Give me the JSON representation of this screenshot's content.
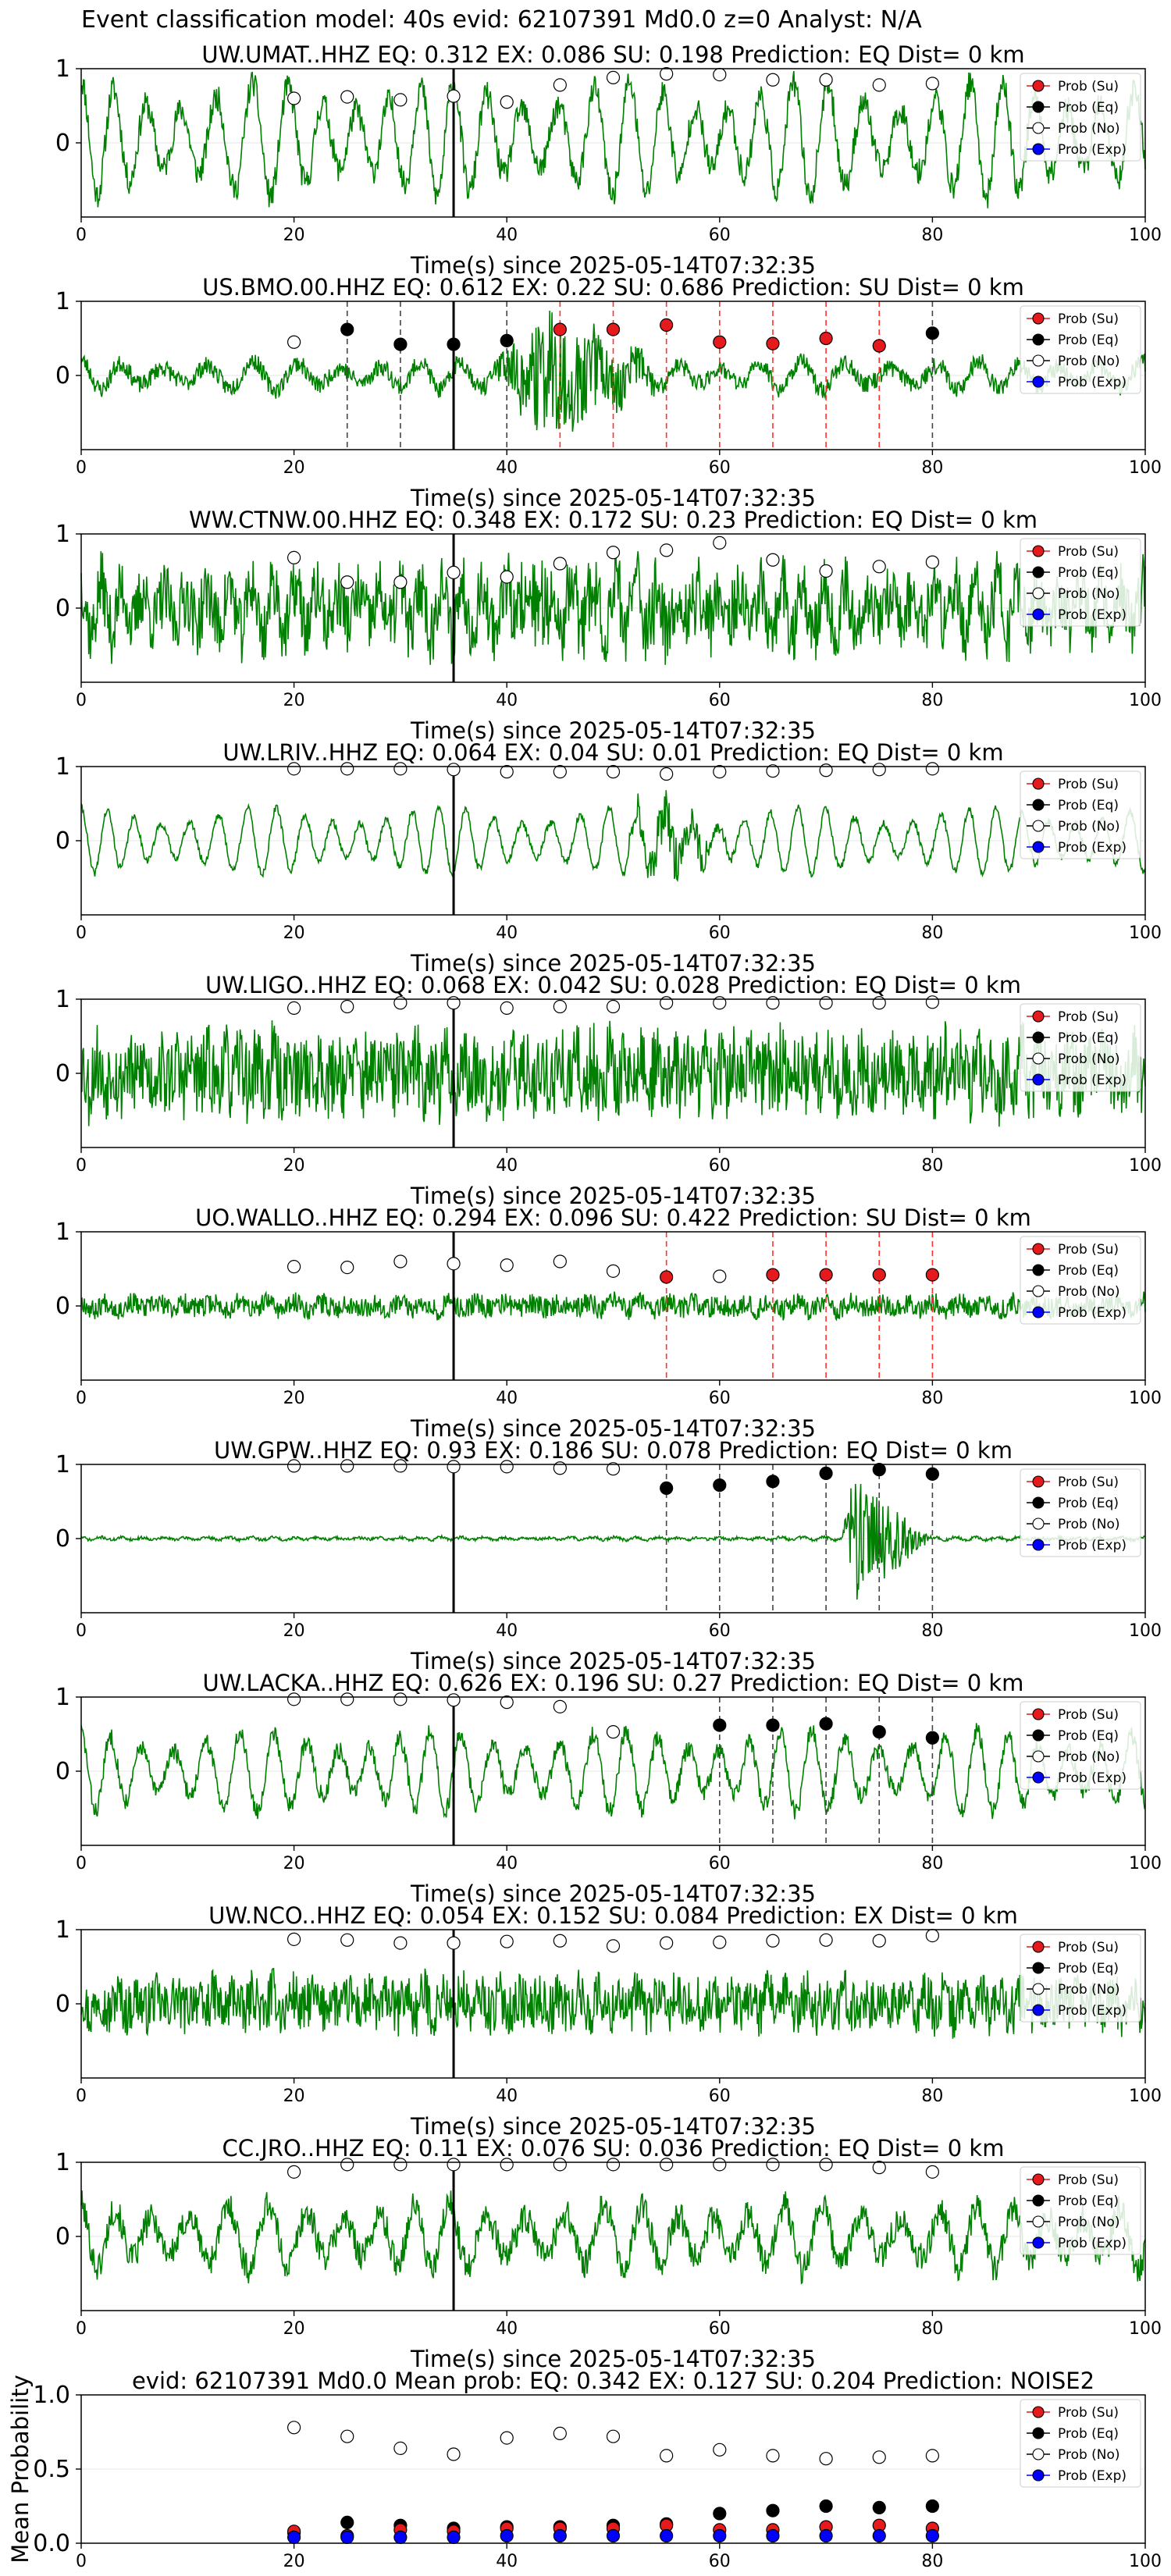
{
  "figure": {
    "suptitle": "Event classification model: 40s evid: 62107391 Md0.0 z=0 Analyst: N/A",
    "xlabel": "Time(s) since 2025-05-14T07:32:35",
    "legend_labels": [
      "Prob (Su)",
      "Prob (Eq)",
      "Prob (No)",
      "Prob (Exp)"
    ]
  },
  "colors": {
    "waveform": "#008000",
    "su": "#e41a1c",
    "eq": "#000000",
    "no": "#ffffff",
    "exp": "#0000ff",
    "su_line": "#ff3030",
    "eq_line": "#444444",
    "event_line": "#000000"
  },
  "chart_data": [
    {
      "type": "line",
      "title": "UW.UMAT..HHZ   EQ: 0.312  EX: 0.086  SU: 0.198   Prediction: EQ    Dist= 0 km",
      "xlim": [
        0,
        100
      ],
      "ylim": [
        -1,
        1
      ],
      "xticks": [
        0,
        20,
        40,
        60,
        80,
        100
      ],
      "yticks": [
        0,
        1
      ],
      "event_time": 35,
      "waveform": {
        "amp": 0.78,
        "noise": 0.18,
        "period": 3.2,
        "bias": 0.05,
        "seed": 11,
        "burst": null
      },
      "points": [
        {
          "x": 20,
          "y": 0.6,
          "class": "no"
        },
        {
          "x": 25,
          "y": 0.62,
          "class": "no"
        },
        {
          "x": 30,
          "y": 0.58,
          "class": "no"
        },
        {
          "x": 35,
          "y": 0.63,
          "class": "no"
        },
        {
          "x": 40,
          "y": 0.55,
          "class": "no"
        },
        {
          "x": 45,
          "y": 0.78,
          "class": "no"
        },
        {
          "x": 50,
          "y": 0.88,
          "class": "no"
        },
        {
          "x": 55,
          "y": 0.93,
          "class": "no"
        },
        {
          "x": 60,
          "y": 0.92,
          "class": "no"
        },
        {
          "x": 65,
          "y": 0.85,
          "class": "no"
        },
        {
          "x": 70,
          "y": 0.85,
          "class": "no"
        },
        {
          "x": 75,
          "y": 0.78,
          "class": "no"
        },
        {
          "x": 80,
          "y": 0.8,
          "class": "no"
        }
      ]
    },
    {
      "type": "line",
      "title": "US.BMO.00.HHZ   EQ: 0.612  EX: 0.22  SU: 0.686   Prediction: SU    Dist= 0 km",
      "xlim": [
        0,
        100
      ],
      "ylim": [
        -1,
        1
      ],
      "xticks": [
        0,
        20,
        40,
        60,
        80,
        100
      ],
      "yticks": [
        0,
        1
      ],
      "event_time": 35,
      "waveform": {
        "amp": 0.2,
        "noise": 0.12,
        "period": 4.0,
        "bias": 0.0,
        "seed": 23,
        "burst": {
          "start": 38,
          "peak": 44,
          "end": 55,
          "amp": 0.85
        }
      },
      "points": [
        {
          "x": 20,
          "y": 0.45,
          "class": "no"
        },
        {
          "x": 25,
          "y": 0.62,
          "class": "eq"
        },
        {
          "x": 30,
          "y": 0.42,
          "class": "eq"
        },
        {
          "x": 35,
          "y": 0.42,
          "class": "eq"
        },
        {
          "x": 40,
          "y": 0.47,
          "class": "eq"
        },
        {
          "x": 45,
          "y": 0.62,
          "class": "su"
        },
        {
          "x": 50,
          "y": 0.62,
          "class": "su"
        },
        {
          "x": 55,
          "y": 0.68,
          "class": "su"
        },
        {
          "x": 60,
          "y": 0.45,
          "class": "su"
        },
        {
          "x": 65,
          "y": 0.43,
          "class": "su"
        },
        {
          "x": 70,
          "y": 0.5,
          "class": "su"
        },
        {
          "x": 75,
          "y": 0.4,
          "class": "su"
        },
        {
          "x": 80,
          "y": 0.57,
          "class": "eq"
        }
      ]
    },
    {
      "type": "line",
      "title": "WW.CTNW.00.HHZ   EQ: 0.348  EX: 0.172  SU: 0.23   Prediction: EQ    Dist= 0 km",
      "xlim": [
        0,
        100
      ],
      "ylim": [
        -1,
        1
      ],
      "xticks": [
        0,
        20,
        40,
        60,
        80,
        100
      ],
      "yticks": [
        0,
        1
      ],
      "event_time": 35,
      "waveform": {
        "amp": 0.35,
        "noise": 0.45,
        "period": 2.0,
        "bias": 0.0,
        "seed": 37,
        "burst": {
          "start": 36,
          "peak": 42,
          "end": 70,
          "amp": 0.35
        }
      },
      "points": [
        {
          "x": 20,
          "y": 0.68,
          "class": "no"
        },
        {
          "x": 25,
          "y": 0.35,
          "class": "no"
        },
        {
          "x": 30,
          "y": 0.35,
          "class": "no"
        },
        {
          "x": 35,
          "y": 0.48,
          "class": "no"
        },
        {
          "x": 40,
          "y": 0.42,
          "class": "no"
        },
        {
          "x": 45,
          "y": 0.6,
          "class": "no"
        },
        {
          "x": 50,
          "y": 0.75,
          "class": "no"
        },
        {
          "x": 55,
          "y": 0.78,
          "class": "no"
        },
        {
          "x": 60,
          "y": 0.88,
          "class": "no"
        },
        {
          "x": 65,
          "y": 0.65,
          "class": "no"
        },
        {
          "x": 70,
          "y": 0.5,
          "class": "no"
        },
        {
          "x": 75,
          "y": 0.56,
          "class": "no"
        },
        {
          "x": 80,
          "y": 0.62,
          "class": "no"
        }
      ]
    },
    {
      "type": "line",
      "title": "UW.LRIV..HHZ   EQ: 0.064  EX: 0.04  SU: 0.01   Prediction: EQ    Dist= 0 km",
      "xlim": [
        0,
        100
      ],
      "ylim": [
        -1,
        1
      ],
      "xticks": [
        0,
        20,
        40,
        60,
        80,
        100
      ],
      "yticks": [
        0,
        1
      ],
      "event_time": 35,
      "waveform": {
        "amp": 0.45,
        "noise": 0.05,
        "period": 2.6,
        "bias": 0.0,
        "seed": 41,
        "burst": {
          "start": 50,
          "peak": 55,
          "end": 62,
          "amp": 0.4
        }
      },
      "points": [
        {
          "x": 20,
          "y": 0.97,
          "class": "no"
        },
        {
          "x": 25,
          "y": 0.97,
          "class": "no"
        },
        {
          "x": 30,
          "y": 0.97,
          "class": "no"
        },
        {
          "x": 35,
          "y": 0.96,
          "class": "no"
        },
        {
          "x": 40,
          "y": 0.93,
          "class": "no"
        },
        {
          "x": 45,
          "y": 0.93,
          "class": "no"
        },
        {
          "x": 50,
          "y": 0.93,
          "class": "no"
        },
        {
          "x": 55,
          "y": 0.9,
          "class": "no"
        },
        {
          "x": 60,
          "y": 0.93,
          "class": "no"
        },
        {
          "x": 65,
          "y": 0.94,
          "class": "no"
        },
        {
          "x": 70,
          "y": 0.95,
          "class": "no"
        },
        {
          "x": 75,
          "y": 0.96,
          "class": "no"
        },
        {
          "x": 80,
          "y": 0.97,
          "class": "no"
        }
      ]
    },
    {
      "type": "line",
      "title": "UW.LIGO..HHZ   EQ: 0.068  EX: 0.042  SU: 0.028   Prediction: EQ    Dist= 0 km",
      "xlim": [
        0,
        100
      ],
      "ylim": [
        -1,
        1
      ],
      "xticks": [
        0,
        20,
        40,
        60,
        80,
        100
      ],
      "yticks": [
        0,
        1
      ],
      "event_time": 35,
      "waveform": {
        "amp": 0.2,
        "noise": 0.55,
        "period": 1.5,
        "bias": 0.0,
        "seed": 53,
        "burst": null
      },
      "points": [
        {
          "x": 20,
          "y": 0.88,
          "class": "no"
        },
        {
          "x": 25,
          "y": 0.9,
          "class": "no"
        },
        {
          "x": 30,
          "y": 0.95,
          "class": "no"
        },
        {
          "x": 35,
          "y": 0.95,
          "class": "no"
        },
        {
          "x": 40,
          "y": 0.88,
          "class": "no"
        },
        {
          "x": 45,
          "y": 0.9,
          "class": "no"
        },
        {
          "x": 50,
          "y": 0.9,
          "class": "no"
        },
        {
          "x": 55,
          "y": 0.95,
          "class": "no"
        },
        {
          "x": 60,
          "y": 0.95,
          "class": "no"
        },
        {
          "x": 65,
          "y": 0.95,
          "class": "no"
        },
        {
          "x": 70,
          "y": 0.95,
          "class": "no"
        },
        {
          "x": 75,
          "y": 0.95,
          "class": "no"
        },
        {
          "x": 80,
          "y": 0.96,
          "class": "no"
        }
      ]
    },
    {
      "type": "line",
      "title": "UO.WALLO..HHZ   EQ: 0.294  EX: 0.096  SU: 0.422   Prediction: SU    Dist= 0 km",
      "xlim": [
        0,
        100
      ],
      "ylim": [
        -1,
        1
      ],
      "xticks": [
        0,
        20,
        40,
        60,
        80,
        100
      ],
      "yticks": [
        0,
        1
      ],
      "event_time": 35,
      "waveform": {
        "amp": 0.06,
        "noise": 0.14,
        "period": 2.5,
        "bias": 0.0,
        "seed": 67,
        "burst": null
      },
      "points": [
        {
          "x": 20,
          "y": 0.53,
          "class": "no"
        },
        {
          "x": 25,
          "y": 0.52,
          "class": "no"
        },
        {
          "x": 30,
          "y": 0.6,
          "class": "no"
        },
        {
          "x": 35,
          "y": 0.57,
          "class": "no"
        },
        {
          "x": 40,
          "y": 0.55,
          "class": "no"
        },
        {
          "x": 45,
          "y": 0.6,
          "class": "no"
        },
        {
          "x": 50,
          "y": 0.47,
          "class": "no"
        },
        {
          "x": 55,
          "y": 0.39,
          "class": "su"
        },
        {
          "x": 60,
          "y": 0.4,
          "class": "no"
        },
        {
          "x": 65,
          "y": 0.42,
          "class": "su"
        },
        {
          "x": 70,
          "y": 0.42,
          "class": "su"
        },
        {
          "x": 75,
          "y": 0.42,
          "class": "su"
        },
        {
          "x": 80,
          "y": 0.42,
          "class": "su"
        }
      ]
    },
    {
      "type": "line",
      "title": "UW.GPW..HHZ   EQ: 0.93  EX: 0.186  SU: 0.078   Prediction: EQ    Dist= 0 km",
      "xlim": [
        0,
        100
      ],
      "ylim": [
        -1,
        1
      ],
      "xticks": [
        0,
        20,
        40,
        60,
        80,
        100
      ],
      "yticks": [
        0,
        1
      ],
      "event_time": 35,
      "waveform": {
        "amp": 0.02,
        "noise": 0.02,
        "period": 2.0,
        "bias": 0.0,
        "seed": 71,
        "burst": {
          "start": 71.5,
          "peak": 72.5,
          "end": 80,
          "amp": 0.9
        }
      },
      "points": [
        {
          "x": 20,
          "y": 0.98,
          "class": "no"
        },
        {
          "x": 25,
          "y": 0.98,
          "class": "no"
        },
        {
          "x": 30,
          "y": 0.98,
          "class": "no"
        },
        {
          "x": 35,
          "y": 0.97,
          "class": "no"
        },
        {
          "x": 40,
          "y": 0.97,
          "class": "no"
        },
        {
          "x": 45,
          "y": 0.95,
          "class": "no"
        },
        {
          "x": 50,
          "y": 0.94,
          "class": "no"
        },
        {
          "x": 55,
          "y": 0.68,
          "class": "eq"
        },
        {
          "x": 60,
          "y": 0.72,
          "class": "eq"
        },
        {
          "x": 65,
          "y": 0.77,
          "class": "eq"
        },
        {
          "x": 70,
          "y": 0.88,
          "class": "eq"
        },
        {
          "x": 75,
          "y": 0.93,
          "class": "eq"
        },
        {
          "x": 80,
          "y": 0.87,
          "class": "eq"
        }
      ]
    },
    {
      "type": "line",
      "title": "UW.LACKA..HHZ   EQ: 0.626  EX: 0.196  SU: 0.27   Prediction: EQ    Dist= 0 km",
      "xlim": [
        0,
        100
      ],
      "ylim": [
        -1,
        1
      ],
      "xticks": [
        0,
        20,
        40,
        60,
        80,
        100
      ],
      "yticks": [
        0,
        1
      ],
      "event_time": 35,
      "waveform": {
        "amp": 0.55,
        "noise": 0.12,
        "period": 3.0,
        "bias": 0.0,
        "seed": 83,
        "burst": null
      },
      "points": [
        {
          "x": 20,
          "y": 0.97,
          "class": "no"
        },
        {
          "x": 25,
          "y": 0.97,
          "class": "no"
        },
        {
          "x": 30,
          "y": 0.97,
          "class": "no"
        },
        {
          "x": 35,
          "y": 0.96,
          "class": "no"
        },
        {
          "x": 40,
          "y": 0.93,
          "class": "no"
        },
        {
          "x": 45,
          "y": 0.87,
          "class": "no"
        },
        {
          "x": 50,
          "y": 0.53,
          "class": "no"
        },
        {
          "x": 60,
          "y": 0.62,
          "class": "eq"
        },
        {
          "x": 65,
          "y": 0.62,
          "class": "eq"
        },
        {
          "x": 70,
          "y": 0.64,
          "class": "eq"
        },
        {
          "x": 75,
          "y": 0.53,
          "class": "eq"
        },
        {
          "x": 80,
          "y": 0.45,
          "class": "eq"
        }
      ]
    },
    {
      "type": "line",
      "title": "UW.NCO..HHZ   EQ: 0.054  EX: 0.152  SU: 0.084   Prediction: EX    Dist= 0 km",
      "xlim": [
        0,
        100
      ],
      "ylim": [
        -1,
        1
      ],
      "xticks": [
        0,
        20,
        40,
        60,
        80,
        100
      ],
      "yticks": [
        0,
        1
      ],
      "event_time": 35,
      "waveform": {
        "amp": 0.15,
        "noise": 0.35,
        "period": 1.8,
        "bias": 0.0,
        "seed": 97,
        "burst": null
      },
      "points": [
        {
          "x": 20,
          "y": 0.87,
          "class": "no"
        },
        {
          "x": 25,
          "y": 0.86,
          "class": "no"
        },
        {
          "x": 30,
          "y": 0.82,
          "class": "no"
        },
        {
          "x": 35,
          "y": 0.82,
          "class": "no"
        },
        {
          "x": 40,
          "y": 0.84,
          "class": "no"
        },
        {
          "x": 45,
          "y": 0.85,
          "class": "no"
        },
        {
          "x": 50,
          "y": 0.78,
          "class": "no"
        },
        {
          "x": 55,
          "y": 0.82,
          "class": "no"
        },
        {
          "x": 60,
          "y": 0.83,
          "class": "no"
        },
        {
          "x": 65,
          "y": 0.85,
          "class": "no"
        },
        {
          "x": 70,
          "y": 0.86,
          "class": "no"
        },
        {
          "x": 75,
          "y": 0.85,
          "class": "no"
        },
        {
          "x": 80,
          "y": 0.92,
          "class": "no"
        }
      ]
    },
    {
      "type": "line",
      "title": "CC.JRO..HHZ   EQ: 0.11  EX: 0.076  SU: 0.036   Prediction: EQ    Dist= 0 km",
      "xlim": [
        0,
        100
      ],
      "ylim": [
        -1,
        1
      ],
      "xticks": [
        0,
        20,
        40,
        60,
        80,
        100
      ],
      "yticks": [
        0,
        1
      ],
      "event_time": 35,
      "waveform": {
        "amp": 0.45,
        "noise": 0.2,
        "period": 3.5,
        "bias": 0.0,
        "seed": 101,
        "burst": null
      },
      "points": [
        {
          "x": 20,
          "y": 0.87,
          "class": "no"
        },
        {
          "x": 25,
          "y": 0.97,
          "class": "no"
        },
        {
          "x": 30,
          "y": 0.97,
          "class": "no"
        },
        {
          "x": 35,
          "y": 0.97,
          "class": "no"
        },
        {
          "x": 40,
          "y": 0.97,
          "class": "no"
        },
        {
          "x": 45,
          "y": 0.97,
          "class": "no"
        },
        {
          "x": 50,
          "y": 0.97,
          "class": "no"
        },
        {
          "x": 55,
          "y": 0.97,
          "class": "no"
        },
        {
          "x": 60,
          "y": 0.97,
          "class": "no"
        },
        {
          "x": 65,
          "y": 0.97,
          "class": "no"
        },
        {
          "x": 70,
          "y": 0.97,
          "class": "no"
        },
        {
          "x": 75,
          "y": 0.93,
          "class": "no"
        },
        {
          "x": 80,
          "y": 0.87,
          "class": "no"
        }
      ]
    },
    {
      "type": "scatter",
      "title": "evid: 62107391  Md0.0   Mean prob:   EQ: 0.342  EX: 0.127  SU: 0.204   Prediction: NOISE2",
      "ylabel": "Mean Probability",
      "xlim": [
        0,
        100
      ],
      "ylim": [
        0,
        1
      ],
      "xticks": [
        0,
        20,
        40,
        60,
        80,
        100
      ],
      "yticks": [
        0.0,
        0.5,
        1.0
      ],
      "ytick_labels": [
        "0.0",
        "0.5",
        "1.0"
      ],
      "x": [
        20,
        25,
        30,
        35,
        40,
        45,
        50,
        55,
        60,
        65,
        70,
        75,
        80
      ],
      "series": [
        {
          "name": "Prob (No)",
          "class": "no",
          "values": [
            0.78,
            0.72,
            0.64,
            0.6,
            0.71,
            0.74,
            0.72,
            0.59,
            0.63,
            0.59,
            0.57,
            0.58,
            0.59
          ]
        },
        {
          "name": "Prob (Eq)",
          "class": "eq",
          "values": [
            0.07,
            0.14,
            0.12,
            0.1,
            0.11,
            0.11,
            0.12,
            0.13,
            0.2,
            0.22,
            0.25,
            0.24,
            0.25
          ]
        },
        {
          "name": "Prob (Su)",
          "class": "su",
          "values": [
            0.08,
            0.05,
            0.09,
            0.08,
            0.1,
            0.1,
            0.1,
            0.12,
            0.09,
            0.09,
            0.11,
            0.12,
            0.1
          ]
        },
        {
          "name": "Prob (Exp)",
          "class": "exp",
          "values": [
            0.04,
            0.04,
            0.04,
            0.04,
            0.05,
            0.05,
            0.05,
            0.05,
            0.05,
            0.05,
            0.05,
            0.05,
            0.05
          ]
        }
      ]
    }
  ]
}
